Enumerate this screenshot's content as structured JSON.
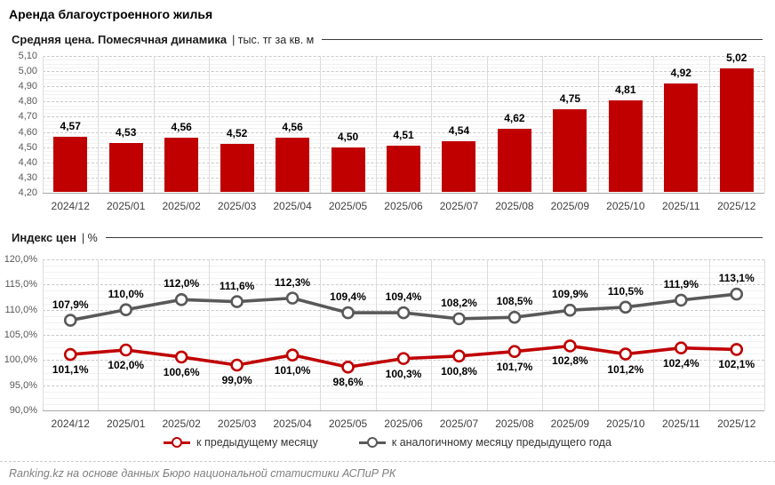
{
  "page": {
    "title": "Аренда благоустроенного жилья",
    "source": "Ranking.kz на основе данных Бюро национальной статистики АСПиР РК"
  },
  "colors": {
    "accent_red": "#C00000",
    "series_gray": "#595959",
    "grid_major": "#C9C9C9",
    "grid_minor": "#F1F1F1",
    "axis_text": "#595959"
  },
  "sections": [
    {
      "title": "Средняя цена. Помесячная динамика",
      "unit_label": "| тыс. тг за кв. м"
    },
    {
      "title": "Индекс цен",
      "unit_label": "| %"
    }
  ],
  "chart_data": [
    {
      "type": "bar",
      "title": "Средняя цена. Помесячная динамика",
      "ylabel": "тыс. тг за кв. м",
      "categories": [
        "2024/12",
        "2025/01",
        "2025/02",
        "2025/03",
        "2025/04",
        "2025/05",
        "2025/06",
        "2025/07",
        "2025/08",
        "2025/09",
        "2025/10",
        "2025/11",
        "2025/12"
      ],
      "values": [
        4.57,
        4.53,
        4.56,
        4.52,
        4.56,
        4.5,
        4.51,
        4.54,
        4.62,
        4.75,
        4.81,
        4.92,
        5.02
      ],
      "labels": [
        "4,57",
        "4,53",
        "4,56",
        "4,52",
        "4,56",
        "4,50",
        "4,51",
        "4,54",
        "4,62",
        "4,75",
        "4,81",
        "4,92",
        "5,02"
      ],
      "ylim": [
        4.2,
        5.1
      ],
      "ytick_step": 0.1,
      "ytick_values": [
        5.1,
        5.0,
        4.9,
        4.8,
        4.7,
        4.6,
        4.5,
        4.4,
        4.3,
        4.2
      ],
      "ytick_labels": [
        "5,10",
        "5,00",
        "4,90",
        "4,80",
        "4,70",
        "4,60",
        "4,50",
        "4,40",
        "4,30",
        "4,20"
      ],
      "bar_color": "#C00000",
      "grid": true
    },
    {
      "type": "line",
      "title": "Индекс цен",
      "ylabel": "%",
      "categories": [
        "2024/12",
        "2025/01",
        "2025/02",
        "2025/03",
        "2025/04",
        "2025/05",
        "2025/06",
        "2025/07",
        "2025/08",
        "2025/09",
        "2025/10",
        "2025/11",
        "2025/12"
      ],
      "series": [
        {
          "name": "к предыдущему месяцу",
          "color": "#C00000",
          "values": [
            101.1,
            102.0,
            100.6,
            99.0,
            101.0,
            98.6,
            100.3,
            100.8,
            101.7,
            102.8,
            101.2,
            102.4,
            102.1
          ],
          "labels": [
            "101,1%",
            "102,0%",
            "100,6%",
            "99,0%",
            "101,0%",
            "98,6%",
            "100,3%",
            "100,8%",
            "101,7%",
            "102,8%",
            "101,2%",
            "102,4%",
            "102,1%"
          ]
        },
        {
          "name": "к аналогичному месяцу предыдущего года",
          "color": "#595959",
          "values": [
            107.9,
            110.0,
            112.0,
            111.6,
            112.3,
            109.4,
            109.4,
            108.2,
            108.5,
            109.9,
            110.5,
            111.9,
            113.1
          ],
          "labels": [
            "107,9%",
            "110,0%",
            "112,0%",
            "111,6%",
            "112,3%",
            "109,4%",
            "109,4%",
            "108,2%",
            "108,5%",
            "109,9%",
            "110,5%",
            "111,9%",
            "113,1%"
          ]
        }
      ],
      "ylim": [
        90,
        120
      ],
      "ytick_step": 5,
      "ytick_values": [
        120,
        115,
        110,
        105,
        100,
        95,
        90
      ],
      "ytick_labels": [
        "120,0%",
        "115,0%",
        "110,0%",
        "105,0%",
        "100,0%",
        "95,0%",
        "90,0%"
      ],
      "legend_position": "bottom",
      "grid": true
    }
  ]
}
